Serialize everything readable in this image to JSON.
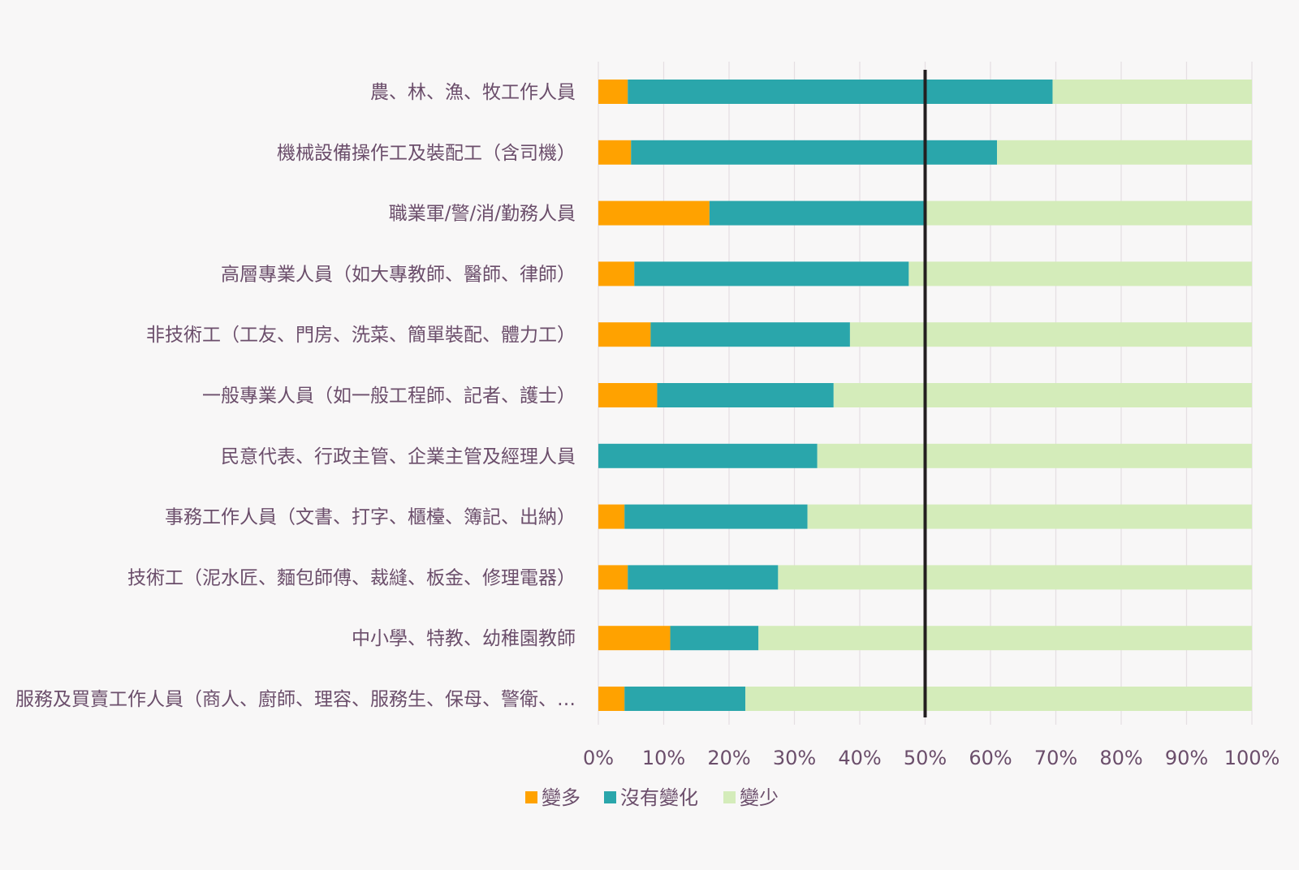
{
  "chart_data": {
    "type": "bar",
    "orientation": "horizontal",
    "stacked": "percent",
    "title": "",
    "xlabel": "",
    "ylabel": "",
    "xlim": [
      0,
      100
    ],
    "x_ticks": [
      "0%",
      "10%",
      "20%",
      "30%",
      "40%",
      "50%",
      "60%",
      "70%",
      "80%",
      "90%",
      "100%"
    ],
    "grid": true,
    "legend_position": "bottom",
    "reference_line": 50,
    "categories": [
      "農、林、漁、牧工作人員",
      "機械設備操作工及裝配工（含司機）",
      "職業軍/警/消/勤務人員",
      "高層專業人員（如大專教師、醫師、律師）",
      "非技術工（工友、門房、洗菜、簡單裝配、體力工）",
      "一般專業人員（如一般工程師、記者、護士）",
      "民意代表、行政主管、企業主管及經理人員",
      "事務工作人員（文書、打字、櫃檯、簿記、出納）",
      "技術工（泥水匠、麵包師傅、裁縫、板金、修理電器）",
      "中小學、特教、幼稚園教師",
      "服務及買賣工作人員（商人、廚師、理容、服務生、保母、警衛、…"
    ],
    "series": [
      {
        "name": "變多",
        "color": "#ffa200",
        "values": [
          4.5,
          5.0,
          17.0,
          5.5,
          8.0,
          9.0,
          0.0,
          4.0,
          4.5,
          11.0,
          4.0
        ]
      },
      {
        "name": "沒有變化",
        "color": "#2aa6ab",
        "values": [
          65.0,
          56.0,
          33.0,
          42.0,
          30.5,
          27.0,
          33.5,
          28.0,
          23.0,
          13.5,
          18.5
        ]
      },
      {
        "name": "變少",
        "color": "#d4ecba",
        "values": [
          30.5,
          39.0,
          50.0,
          52.5,
          61.5,
          64.0,
          66.5,
          68.0,
          72.5,
          75.5,
          77.5
        ]
      }
    ]
  }
}
